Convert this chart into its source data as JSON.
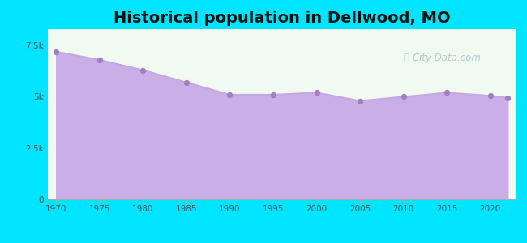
{
  "title": "Historical population in Dellwood, MO",
  "years": [
    1970,
    1975,
    1980,
    1985,
    1990,
    1995,
    2000,
    2005,
    2010,
    2015,
    2020,
    2022
  ],
  "population": [
    7200,
    6800,
    6300,
    5700,
    5100,
    5100,
    5200,
    4800,
    5000,
    5200,
    5050,
    4950
  ],
  "line_color": "#c4a8e0",
  "fill_color": "#c9aee8",
  "fill_alpha": 1.0,
  "dot_color": "#a080c0",
  "dot_size": 18,
  "background_outer": "#00e5ff",
  "background_inner_top": "#e8f5e9",
  "background_inner": "#f0faf0",
  "title_fontsize": 14,
  "tick_label_color": "#555555",
  "ytick_labels": [
    "0",
    "2.5k",
    "5k",
    "7.5k"
  ],
  "ytick_values": [
    0,
    2500,
    5000,
    7500
  ],
  "xlim": [
    1969,
    2023
  ],
  "ylim": [
    0,
    8300
  ],
  "watermark": "City-Data.com"
}
